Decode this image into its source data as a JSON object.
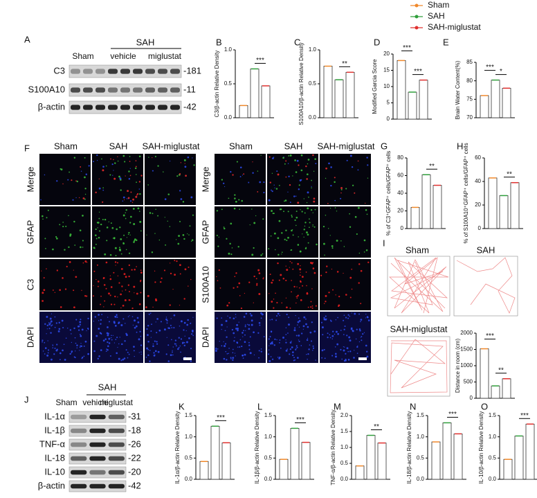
{
  "legend": [
    {
      "name": "Sham",
      "color": "#f0882a"
    },
    {
      "name": "SAH",
      "color": "#2e9e3a"
    },
    {
      "name": "SAH-miglustat",
      "color": "#e0302e"
    }
  ],
  "panel_a": {
    "letter": "A",
    "group": "SAH",
    "columns": [
      "Sham",
      "vehicle",
      "miglustat"
    ],
    "rows": [
      {
        "label": "C3",
        "kda": "-181"
      },
      {
        "label": "S100A10",
        "kda": "-11"
      },
      {
        "label": "β-actin",
        "kda": "-42"
      }
    ]
  },
  "panel_f": {
    "letter": "F",
    "columns": [
      "Sham",
      "SAH",
      "SAH-miglustat"
    ],
    "left_rows": [
      "Merge",
      "GFAP",
      "C3",
      "DAPI"
    ],
    "right_rows": [
      "Merge",
      "GFAP",
      "S100A10",
      "DAPI"
    ]
  },
  "panel_i": {
    "letter": "I",
    "tracks": [
      "Sham",
      "SAH",
      "SAH-miglustat"
    ]
  },
  "panel_j": {
    "letter": "J",
    "group": "SAH",
    "columns": [
      "Sham",
      "vehicle",
      "miglustat"
    ],
    "rows": [
      {
        "label": "IL-1α",
        "kda": "-31"
      },
      {
        "label": "IL-1β",
        "kda": "-18"
      },
      {
        "label": "TNF-α",
        "kda": "-26"
      },
      {
        "label": "IL-18",
        "kda": "-22"
      },
      {
        "label": "IL-10",
        "kda": "-20"
      },
      {
        "label": "β-actin",
        "kda": "-42"
      }
    ]
  },
  "chart_data": [
    {
      "type": "bar",
      "label": "B",
      "ylabel": "C3/β-actin Relative Density",
      "ylim": [
        0,
        1
      ],
      "yticks": [
        {
          "value": 0,
          "label": "0.0"
        },
        0.5,
        {
          "value": 1,
          "label": "1.0"
        }
      ],
      "values": [
        0.18,
        0.72,
        0.47
      ],
      "significance": [
        null,
        "***"
      ]
    },
    {
      "type": "bar",
      "label": "C",
      "ylabel": "S100A10/β-actin Relative Density",
      "ylim": [
        0,
        1
      ],
      "yticks": [
        {
          "value": 0,
          "label": "0.0"
        },
        0.5,
        {
          "value": 1,
          "label": "1.0"
        }
      ],
      "values": [
        0.76,
        0.56,
        0.67
      ],
      "significance": [
        null,
        "**"
      ]
    },
    {
      "type": "bar",
      "label": "D",
      "ylabel": "Modified Garcia Score",
      "ylim": [
        0,
        20
      ],
      "yticks": [
        0,
        5,
        10,
        15,
        20
      ],
      "values": [
        18,
        8.3,
        12
      ],
      "significance": [
        "***",
        "***"
      ]
    },
    {
      "type": "bar",
      "label": "E",
      "ylabel": "Brain Water Content(%)",
      "ylim": [
        70,
        85
      ],
      "yticks": [
        70,
        75,
        80,
        85
      ],
      "values": [
        76,
        80.2,
        78
      ],
      "significance": [
        "***",
        "*"
      ]
    },
    {
      "type": "bar",
      "label": "G",
      "ylabel": "% of C3⁺GFAP⁺ cells/GFAP⁺ cells",
      "ylim": [
        0,
        80
      ],
      "yticks": [
        0,
        20,
        40,
        60,
        80
      ],
      "values": [
        24,
        61,
        49
      ],
      "significance": [
        null,
        "**"
      ]
    },
    {
      "type": "bar",
      "label": "H",
      "ylabel": "% of S100A10⁺GFAP⁺ cells/GFAP⁺ cells",
      "ylim": [
        0,
        60
      ],
      "yticks": [
        0,
        20,
        40,
        60
      ],
      "values": [
        43,
        28,
        39
      ],
      "significance": [
        null,
        "**"
      ]
    },
    {
      "type": "bar",
      "ylabel": "Distance in room (cm)",
      "ylim": [
        0,
        2000
      ],
      "yticks": [
        0,
        500,
        1000,
        1500,
        2000
      ],
      "values": [
        1520,
        380,
        600
      ],
      "significance": [
        "***",
        "**"
      ]
    },
    {
      "type": "bar",
      "label": "K",
      "ylabel": "IL-1α/β-actin Relative Density",
      "ylim": [
        0,
        1.5
      ],
      "yticks": [
        {
          "value": 0,
          "label": "0.0"
        },
        0.5,
        {
          "value": 1,
          "label": "1.0"
        },
        1.5
      ],
      "values": [
        0.42,
        1.25,
        0.86
      ],
      "significance": [
        null,
        "***"
      ]
    },
    {
      "type": "bar",
      "label": "L",
      "ylabel": "IL-1β/β-actin Relative Density",
      "ylim": [
        0,
        1.5
      ],
      "yticks": [
        {
          "value": 0,
          "label": "0.0"
        },
        0.5,
        {
          "value": 1,
          "label": "1.0"
        },
        1.5
      ],
      "values": [
        0.47,
        1.2,
        0.87
      ],
      "significance": [
        null,
        "***"
      ]
    },
    {
      "type": "bar",
      "label": "M",
      "ylabel": "TNF-α/β-actin Relative Density",
      "ylim": [
        0,
        2
      ],
      "yticks": [
        {
          "value": 0,
          "label": "0.0"
        },
        0.5,
        {
          "value": 1,
          "label": "1.0"
        },
        1.5,
        {
          "value": 2,
          "label": "2.0"
        }
      ],
      "values": [
        0.42,
        1.38,
        1.14
      ],
      "significance": [
        null,
        "**"
      ]
    },
    {
      "type": "bar",
      "label": "N",
      "ylabel": "IL-18/β-actin Relative Density",
      "ylim": [
        0,
        1.5
      ],
      "yticks": [
        {
          "value": 0,
          "label": "0.0"
        },
        0.5,
        {
          "value": 1,
          "label": "1.0"
        },
        1.5
      ],
      "values": [
        0.88,
        1.33,
        1.07
      ],
      "significance": [
        null,
        "***"
      ]
    },
    {
      "type": "bar",
      "label": "O",
      "ylabel": "IL-10/β-actin Relative Density",
      "ylim": [
        0,
        1.5
      ],
      "yticks": [
        {
          "value": 0,
          "label": "0.0"
        },
        0.5,
        {
          "value": 1,
          "label": "1.0"
        },
        1.5
      ],
      "values": [
        0.47,
        1.02,
        1.3
      ],
      "significance": [
        null,
        "***"
      ]
    }
  ]
}
